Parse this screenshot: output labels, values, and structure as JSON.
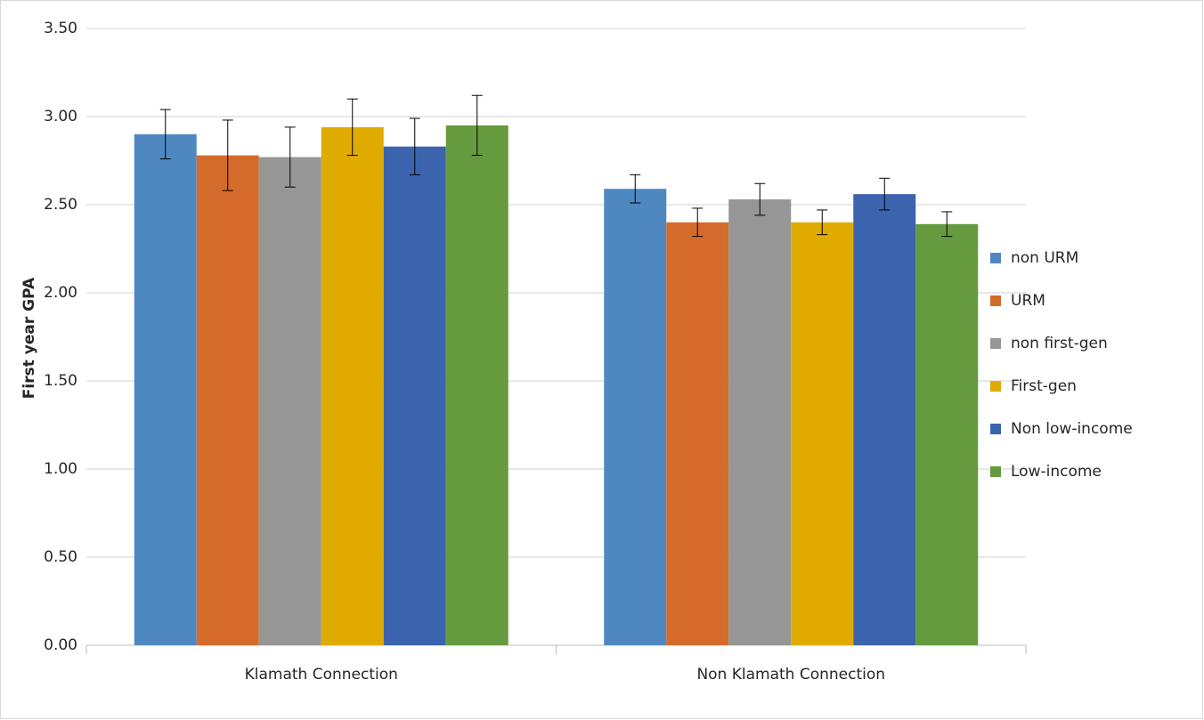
{
  "chart_data": {
    "type": "bar",
    "y_label": "First year GPA",
    "categories": [
      "Klamath Connection",
      "Non Klamath Connection"
    ],
    "series": [
      {
        "name": "non URM",
        "color": "#4f88c0",
        "values": [
          2.9,
          2.59
        ],
        "errors": [
          0.14,
          0.08
        ]
      },
      {
        "name": "URM",
        "color": "#d46b2b",
        "values": [
          2.78,
          2.4
        ],
        "errors": [
          0.2,
          0.08
        ]
      },
      {
        "name": "non first-gen",
        "color": "#969696",
        "values": [
          2.77,
          2.53
        ],
        "errors": [
          0.17,
          0.09
        ]
      },
      {
        "name": "First-gen",
        "color": "#e0ab00",
        "values": [
          2.94,
          2.4
        ],
        "errors": [
          0.16,
          0.07
        ]
      },
      {
        "name": "Non low-income",
        "color": "#3c64ae",
        "values": [
          2.83,
          2.56
        ],
        "errors": [
          0.16,
          0.09
        ]
      },
      {
        "name": "Low-income",
        "color": "#659b3e",
        "values": [
          2.95,
          2.39
        ],
        "errors": [
          0.17,
          0.07
        ]
      }
    ],
    "ylim": [
      0,
      3.5
    ],
    "yticks": [
      {
        "value": 0,
        "label": "0.00"
      },
      {
        "value": 0.5,
        "label": "0.50"
      },
      {
        "value": 1,
        "label": "1.00"
      },
      {
        "value": 1.5,
        "label": "1.50"
      },
      {
        "value": 2,
        "label": "2.00"
      },
      {
        "value": 2.5,
        "label": "2.50"
      },
      {
        "value": 3,
        "label": "3.00"
      },
      {
        "value": 3.5,
        "label": "3.50"
      }
    ],
    "grid": true,
    "legend": "right"
  }
}
